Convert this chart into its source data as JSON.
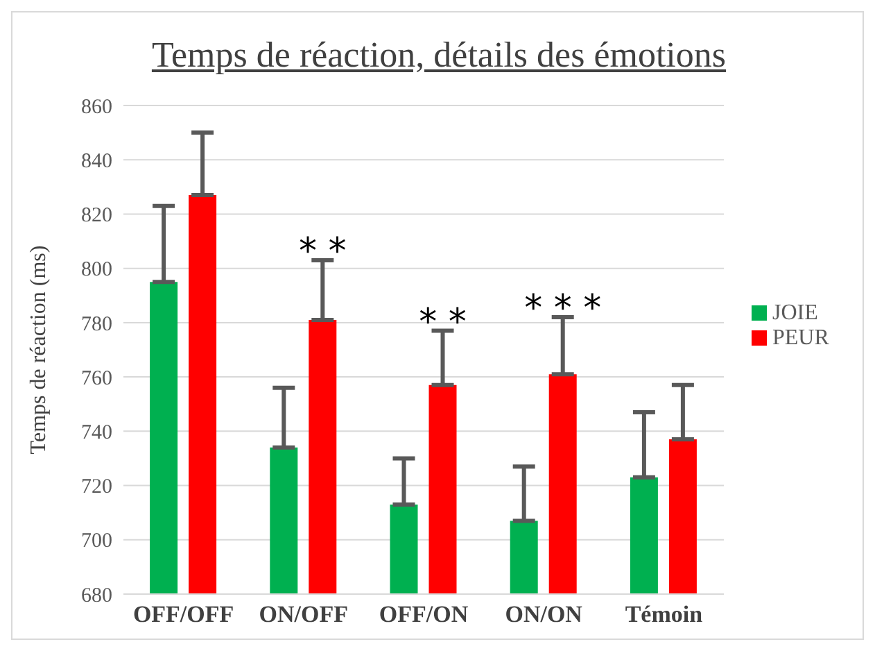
{
  "chart_data": {
    "type": "bar",
    "title": "Temps de réaction, détails des émotions",
    "ylabel": "Temps de réaction (ms)",
    "categories": [
      "OFF/OFF",
      "ON/OFF",
      "OFF/ON",
      "ON/ON",
      "Témoin"
    ],
    "series": [
      {
        "name": "JOIE",
        "color": "#00b050",
        "values": [
          795,
          734,
          713,
          707,
          723
        ],
        "errors": [
          [
            795,
            823
          ],
          [
            734,
            756
          ],
          [
            713,
            730
          ],
          [
            707,
            727
          ],
          [
            723,
            747
          ]
        ]
      },
      {
        "name": "PEUR",
        "color": "#ff0000",
        "values": [
          827,
          781,
          757,
          761,
          737
        ],
        "errors": [
          [
            827,
            850
          ],
          [
            781,
            803
          ],
          [
            757,
            777
          ],
          [
            761,
            782
          ],
          [
            737,
            757
          ]
        ]
      }
    ],
    "ylim": [
      680,
      860
    ],
    "yticks": [
      680,
      700,
      720,
      740,
      760,
      780,
      800,
      820,
      840,
      860
    ],
    "grid": "y",
    "legend": "right",
    "annotations": [
      {
        "text": "* *",
        "x": "ON/OFF",
        "y": 781
      },
      {
        "text": "* *",
        "x": "OFF/ON",
        "y": 757
      },
      {
        "text": "* * *",
        "x": "ON/ON",
        "y": 761
      }
    ]
  }
}
